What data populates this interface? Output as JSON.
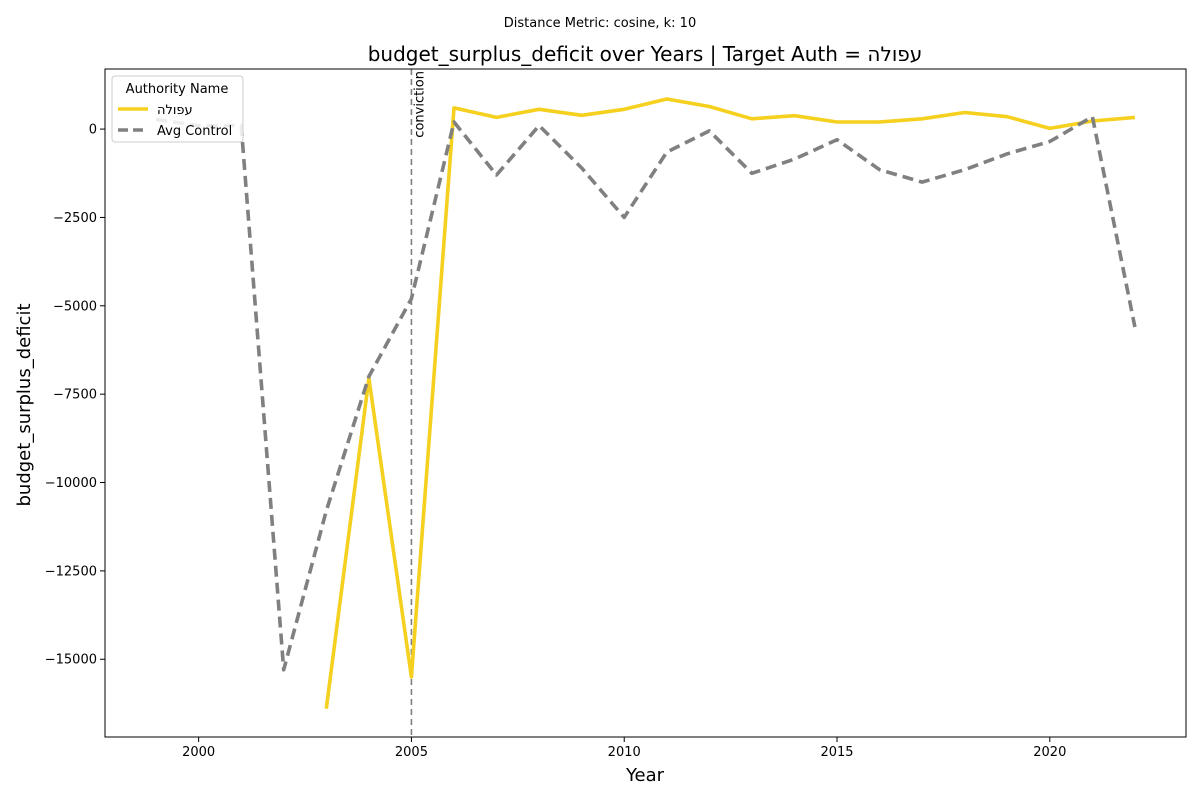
{
  "chart_data": {
    "type": "line",
    "suptitle": "Distance Metric: cosine, k: 10",
    "title": "budget_surplus_deficit over Years | Target Auth = עפולה",
    "xlabel": "Year",
    "ylabel": "budget_surplus_deficit",
    "xlim": [
      1997.8,
      2023.2
    ],
    "ylim": [
      -17200,
      1700
    ],
    "xticks": [
      2000,
      2005,
      2010,
      2015,
      2020
    ],
    "xtick_labels": [
      "2000",
      "2005",
      "2010",
      "2015",
      "2020"
    ],
    "yticks": [
      0,
      -2500,
      -5000,
      -7500,
      -10000,
      -12500,
      -15000
    ],
    "ytick_labels": [
      "0",
      "−2500",
      "−5000",
      "−7500",
      "−10000",
      "−12500",
      "−15000"
    ],
    "grid": false,
    "legend": {
      "title": "Authority Name",
      "placement": "upper left",
      "labels": [
        "עפולה",
        "Avg Control"
      ]
    },
    "series": [
      {
        "name": "עפולה",
        "color": "#f5d01e",
        "style": "solid",
        "x": [
          2003,
          2004,
          2005,
          2006,
          2007,
          2008,
          2009,
          2010,
          2011,
          2012,
          2013,
          2014,
          2015,
          2016,
          2017,
          2018,
          2019,
          2020,
          2021,
          2022
        ],
        "y": [
          -16400,
          -7050,
          -15500,
          600,
          330,
          560,
          390,
          560,
          850,
          640,
          290,
          380,
          200,
          200,
          290,
          470,
          350,
          20,
          230,
          330
        ]
      },
      {
        "name": "Avg Control",
        "color": "#808080",
        "style": "dashed",
        "x": [
          1999,
          2000,
          2001,
          2002,
          2003,
          2004,
          2005,
          2006,
          2007,
          2008,
          2009,
          2010,
          2011,
          2012,
          2013,
          2014,
          2015,
          2016,
          2017,
          2018,
          2019,
          2020,
          2021,
          2022
        ],
        "y": [
          270,
          100,
          100,
          -15300,
          -10800,
          -7000,
          -4800,
          200,
          -1300,
          100,
          -1100,
          -2500,
          -650,
          -50,
          -1250,
          -850,
          -300,
          -1150,
          -1500,
          -1150,
          -700,
          -350,
          350,
          -5600
        ]
      }
    ],
    "annotations": [
      {
        "type": "vline",
        "x": 2005,
        "label": "conviction",
        "color": "#808080",
        "style": "dashed"
      }
    ]
  }
}
